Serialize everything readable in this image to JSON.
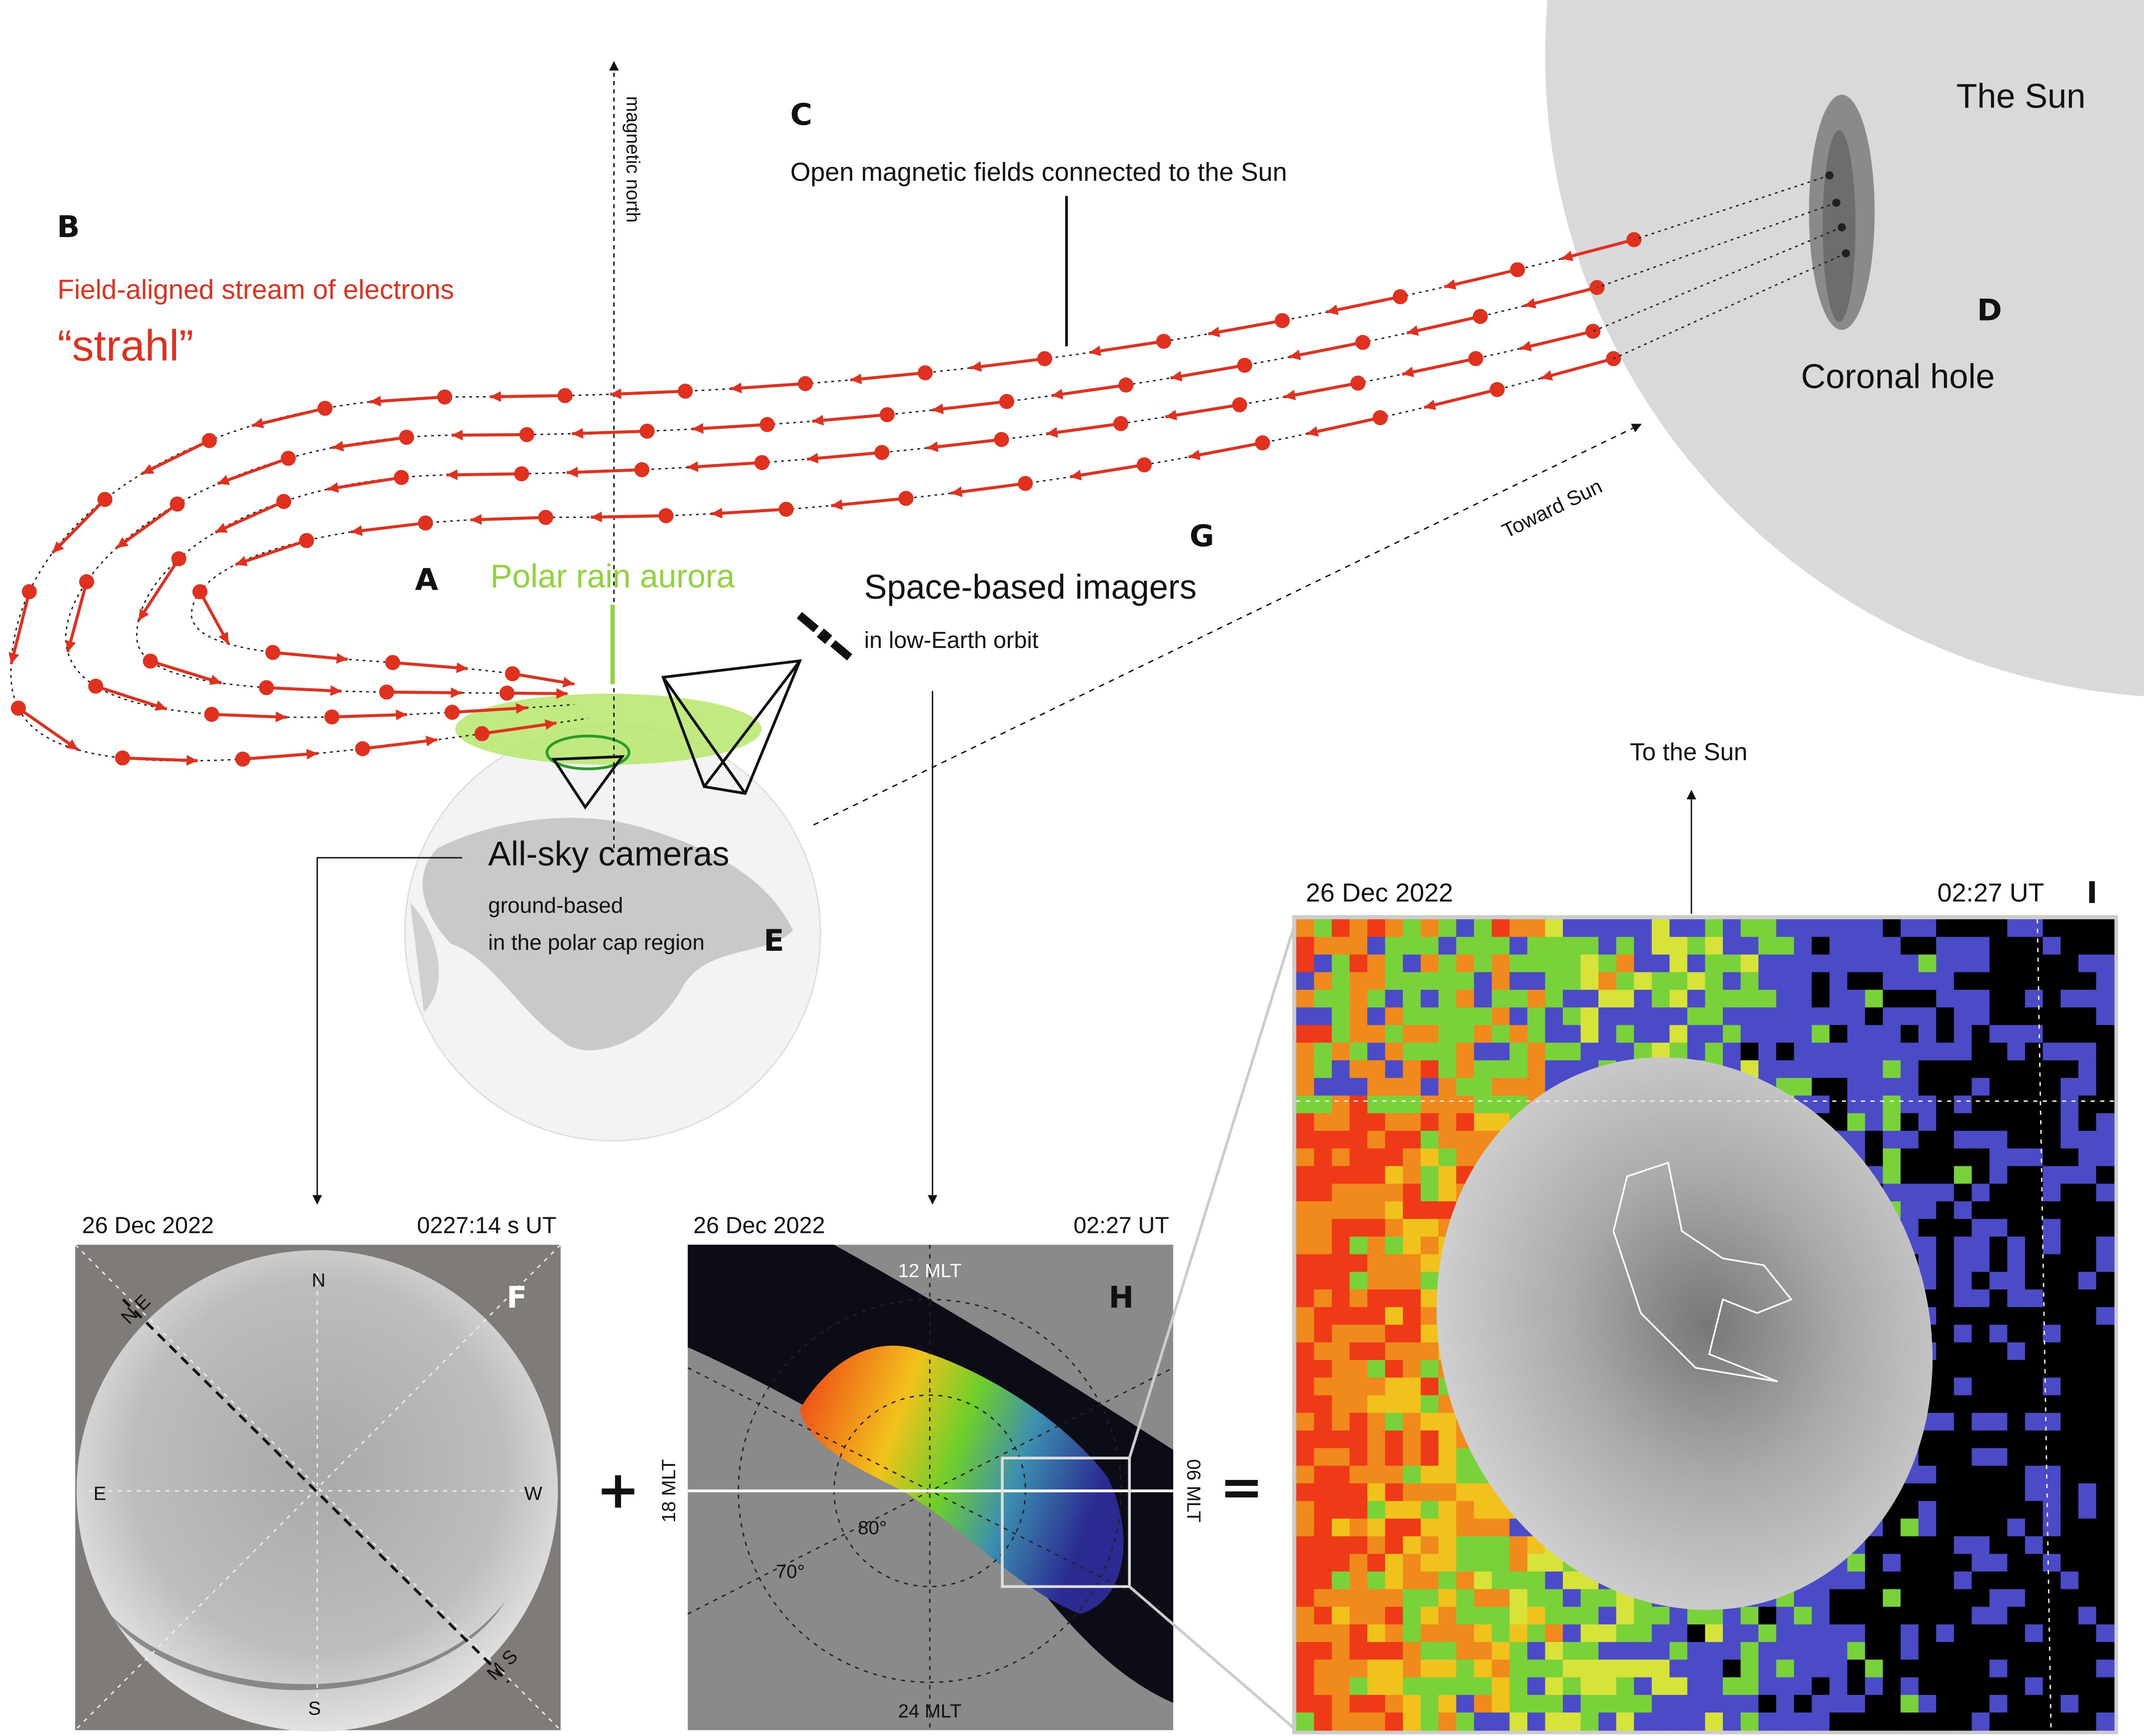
{
  "labels": {
    "magnetic_north": "magnetic north",
    "letter_c": "C",
    "open_fields": "Open magnetic fields connected to the Sun",
    "the_sun": "The Sun",
    "letter_d": "D",
    "coronal_hole": "Coronal hole",
    "letter_b": "B",
    "stream_title": "Field-aligned stream of electrons",
    "strahl": "“strahl”",
    "letter_a": "A",
    "polar_rain": "Polar rain aurora",
    "letter_g": "G",
    "space_imagers": "Space-based imagers",
    "leo": "in low-Earth orbit",
    "toward_sun": "Toward Sun",
    "to_the_sun": "To the Sun",
    "all_sky": "All-sky cameras",
    "ground_based": "ground-based",
    "polar_cap": "in the polar cap region",
    "letter_e": "E",
    "plus": "+",
    "equals": "="
  },
  "panel_f": {
    "date": "26 Dec 2022",
    "time": "0227:14 s UT",
    "letter": "F",
    "north": "N",
    "south": "S",
    "east": "E",
    "west": "W",
    "diag_top": "N E",
    "diag_bottom": "M S"
  },
  "panel_h": {
    "date": "26 Dec 2022",
    "time": "02:27 UT",
    "letter": "H",
    "mlt_12": "12 MLT",
    "mlt_18": "18 MLT",
    "mlt_06": "06 MLT",
    "mlt_24": "24 MLT",
    "lat_80": "80°",
    "lat_70": "70°"
  },
  "panel_i": {
    "date": "26 Dec 2022",
    "time": "02:27 UT",
    "letter": "I"
  }
}
